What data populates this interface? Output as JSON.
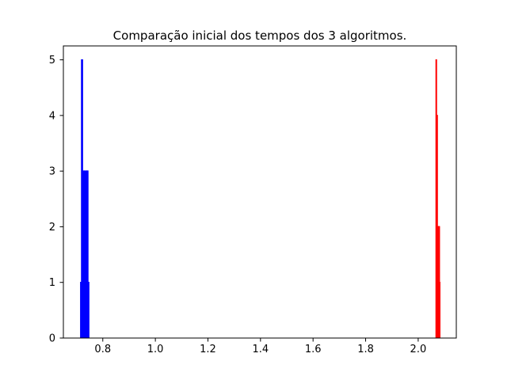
{
  "chart_data": {
    "type": "histogram",
    "title": "Comparação inicial dos tempos dos 3 algoritmos.",
    "xlabel": "",
    "ylabel": "",
    "xlim": [
      0.65,
      2.145
    ],
    "ylim": [
      0,
      5.25
    ],
    "x_ticks": [
      0.8,
      1.0,
      1.2,
      1.4,
      1.6,
      1.8,
      2.0
    ],
    "x_tick_labels": [
      "0.8",
      "1.0",
      "1.2",
      "1.4",
      "1.6",
      "1.8",
      "2.0"
    ],
    "y_ticks": [
      0,
      1,
      2,
      3,
      4,
      5
    ],
    "y_tick_labels": [
      "0",
      "1",
      "2",
      "3",
      "4",
      "5"
    ],
    "grid": false,
    "series": [
      {
        "color": "#0000ff",
        "histtype": "step",
        "bin_edges": [
          0.7158,
          0.7193,
          0.7227,
          0.7262,
          0.7296,
          0.733,
          0.7365,
          0.7399,
          0.7434,
          0.7468
        ],
        "counts": [
          1,
          5,
          2,
          3,
          3,
          1,
          3,
          3,
          1
        ]
      },
      {
        "color": "#ff0000",
        "histtype": "step",
        "bin_edges": [
          2.068,
          2.0696,
          2.0712,
          2.0728,
          2.0744,
          2.076,
          2.0776,
          2.0792,
          2.0808,
          2.0824
        ],
        "counts": [
          5,
          1,
          4,
          2,
          1,
          1,
          2,
          2,
          1
        ]
      }
    ]
  }
}
